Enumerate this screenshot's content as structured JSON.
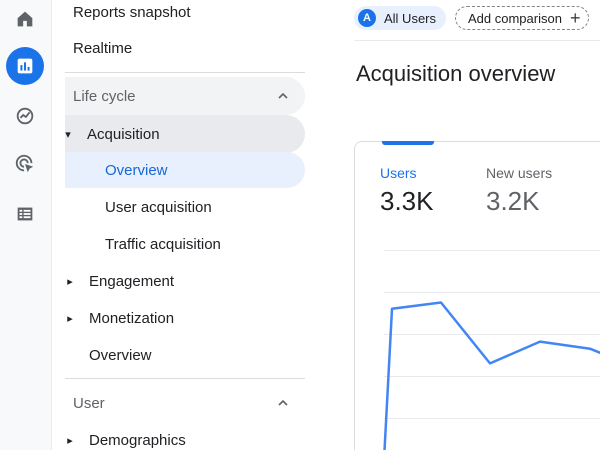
{
  "rail": {
    "icons": [
      "home-icon",
      "reports-icon",
      "explore-icon",
      "advertising-icon",
      "configure-icon"
    ],
    "active_index": 1,
    "accent_color": "#1a73e8"
  },
  "nav": {
    "reports_snapshot": "Reports snapshot",
    "realtime": "Realtime",
    "lifecycle_section": "Life cycle",
    "acquisition": "Acquisition",
    "acquisition_overview": "Overview",
    "user_acquisition": "User acquisition",
    "traffic_acquisition": "Traffic acquisition",
    "engagement": "Engagement",
    "monetization": "Monetization",
    "overview": "Overview",
    "user_section": "User",
    "demographics": "Demographics",
    "selected_item": "Overview",
    "selected_bg": "#e8f0fe",
    "selected_color": "#1967d2"
  },
  "toolbar": {
    "segment_avatar": "A",
    "segment_label": "All Users",
    "add_comparison": "Add comparison",
    "add_icon": "+"
  },
  "page": {
    "title": "Acquisition overview"
  },
  "card": {
    "metrics": [
      {
        "label": "Users",
        "value": "3.3K",
        "active": true
      },
      {
        "label": "New users",
        "value": "3.2K",
        "active": false
      }
    ]
  },
  "chart_data": {
    "type": "line",
    "series": [
      {
        "values": [
          0,
          3.6,
          3.75,
          2.3,
          2.82,
          2.65,
          2.4
        ]
      }
    ],
    "ylim": [
      0,
      5
    ],
    "grid": true,
    "color": "#4285f4"
  }
}
